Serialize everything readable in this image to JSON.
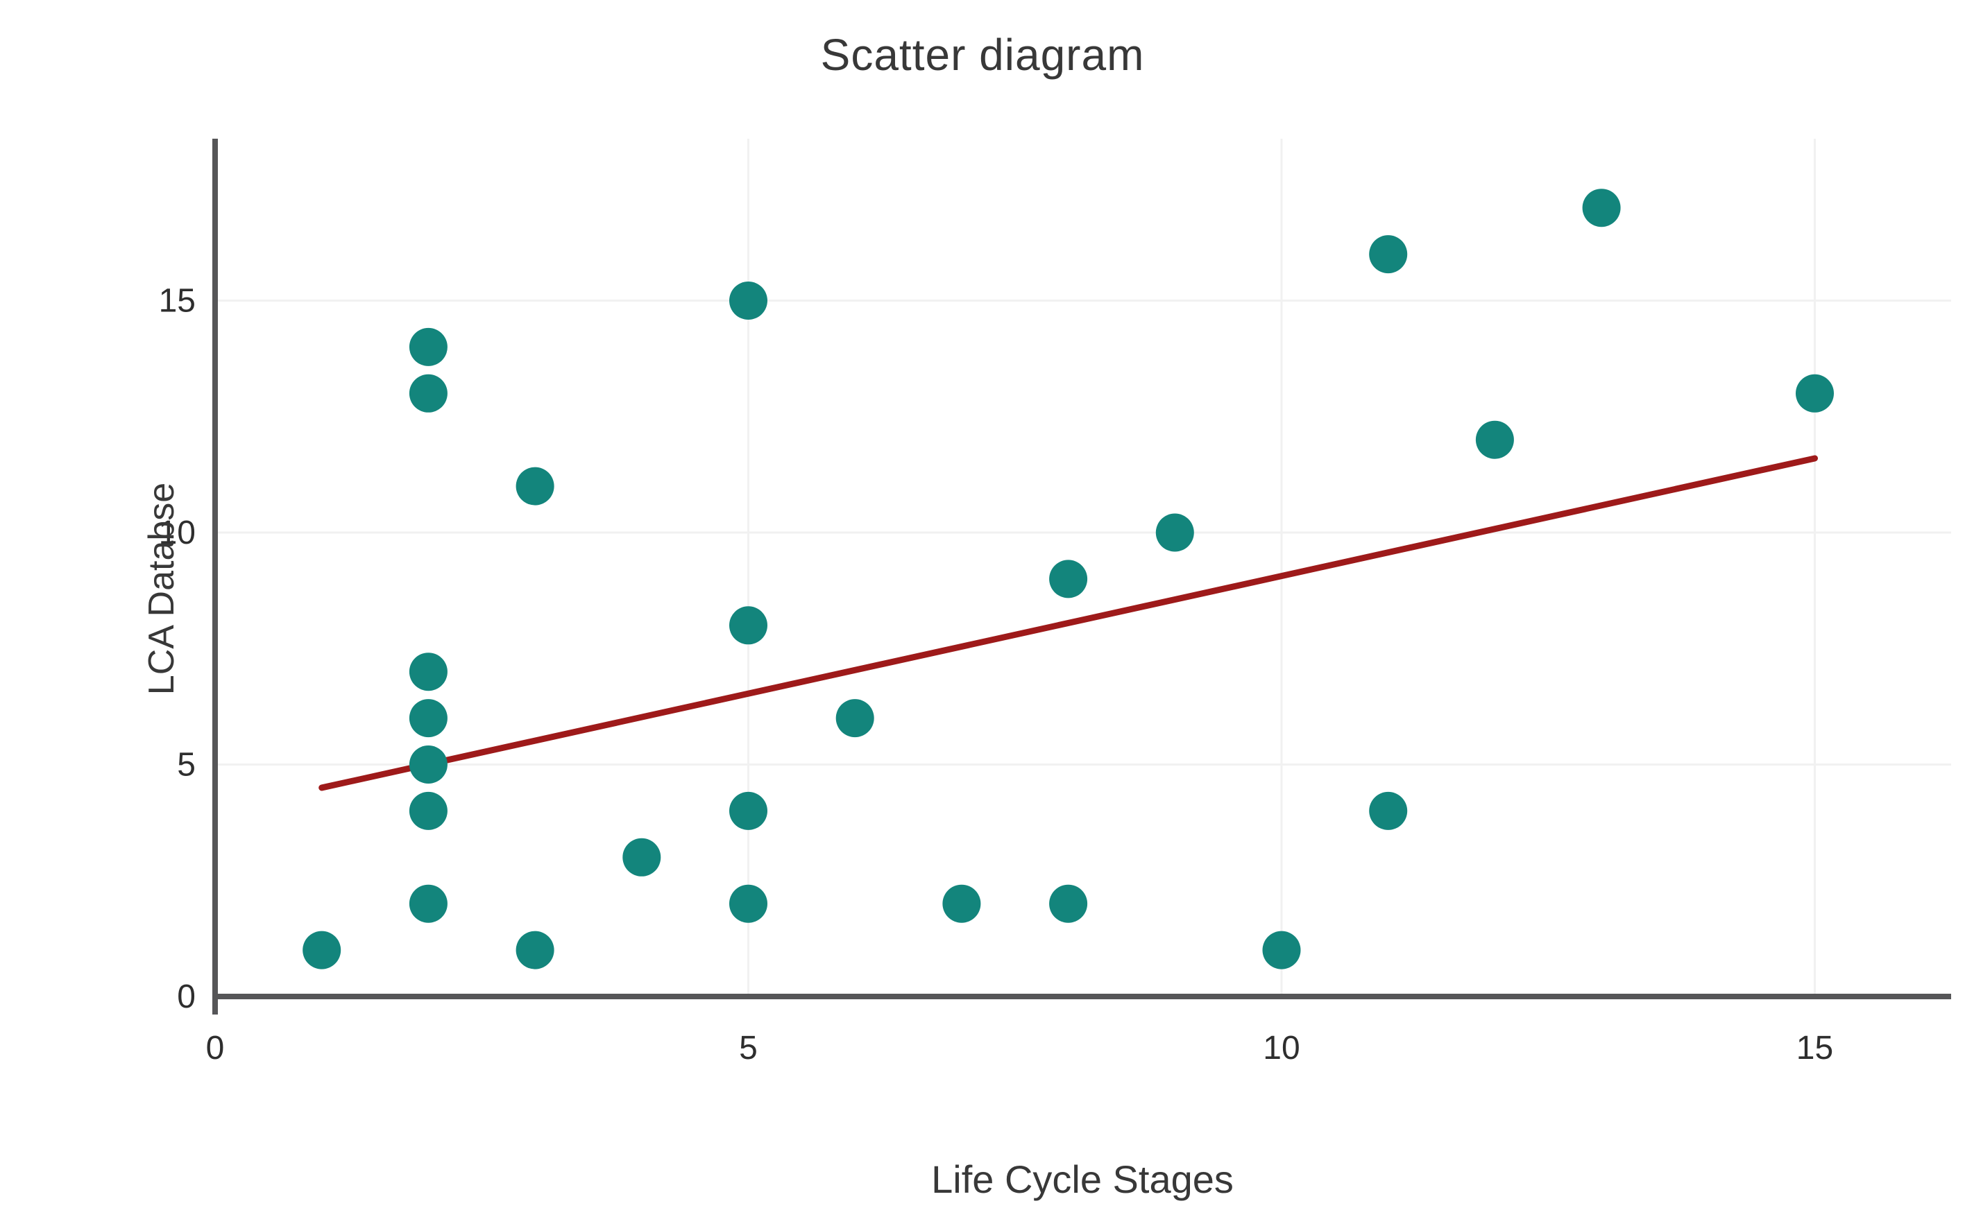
{
  "chart_data": {
    "type": "scatter",
    "title": "Scatter diagram",
    "xlabel": "Life Cycle Stages",
    "ylabel": "LCA Databse",
    "x_ticks": [
      0,
      5,
      10,
      15
    ],
    "y_ticks": [
      0,
      5,
      10,
      15
    ],
    "xlim": [
      0,
      16.3
    ],
    "ylim": [
      0,
      18.5
    ],
    "grid": true,
    "legend_position": "none",
    "points": [
      {
        "x": 1,
        "y": 1
      },
      {
        "x": 2,
        "y": 14
      },
      {
        "x": 2,
        "y": 13
      },
      {
        "x": 2,
        "y": 7
      },
      {
        "x": 2,
        "y": 6
      },
      {
        "x": 2,
        "y": 5
      },
      {
        "x": 2,
        "y": 4
      },
      {
        "x": 2,
        "y": 2
      },
      {
        "x": 3,
        "y": 11
      },
      {
        "x": 3,
        "y": 1
      },
      {
        "x": 4,
        "y": 3
      },
      {
        "x": 5,
        "y": 15
      },
      {
        "x": 5,
        "y": 8
      },
      {
        "x": 5,
        "y": 4
      },
      {
        "x": 5,
        "y": 2
      },
      {
        "x": 6,
        "y": 6
      },
      {
        "x": 7,
        "y": 2
      },
      {
        "x": 8,
        "y": 9
      },
      {
        "x": 8,
        "y": 2
      },
      {
        "x": 9,
        "y": 10
      },
      {
        "x": 10,
        "y": 1
      },
      {
        "x": 11,
        "y": 16
      },
      {
        "x": 11,
        "y": 4
      },
      {
        "x": 12,
        "y": 12
      },
      {
        "x": 13,
        "y": 17
      },
      {
        "x": 15,
        "y": 13
      }
    ],
    "trendline": {
      "x1": 1,
      "y1": 4.5,
      "x2": 15,
      "y2": 11.6
    },
    "colors": {
      "point": "#13857C",
      "trend": "#9E1A1A",
      "axis": "#565658",
      "grid": "#f1f1f1",
      "tick_text": "#2e2e2e",
      "label_text": "#383838"
    }
  }
}
